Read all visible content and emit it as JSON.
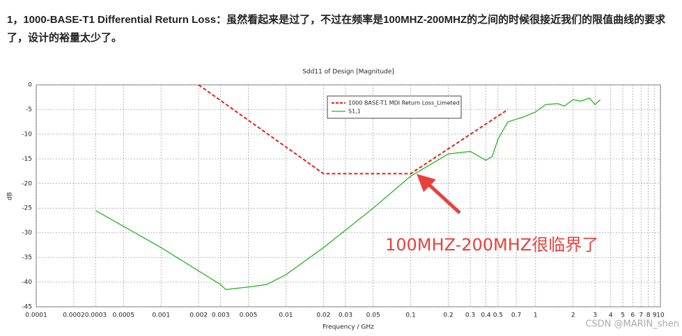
{
  "paragraph": "1，1000-BASE-T1 Differential Return Loss：虽然看起来是过了，不过在频率是100MHZ-200MHZ的之间的时候很接近我们的限值曲线的要求了，设计的裕量太少了。",
  "chart_data": {
    "type": "line",
    "title": "Sdd11 of Design [Magnitude]",
    "x_label": "Frequency / GHz",
    "y_label": "dB",
    "xscale": "log",
    "grid": true,
    "legend": "top",
    "xlim": [
      0.0001,
      10
    ],
    "ylim": [
      -45,
      0
    ],
    "xticks": [
      0.0001,
      0.0002,
      0.0003,
      0.0005,
      0.001,
      0.002,
      0.003,
      0.005,
      0.01,
      0.02,
      0.03,
      0.05,
      0.1,
      0.2,
      0.3,
      0.4,
      0.5,
      0.7,
      1,
      2,
      3,
      4,
      5,
      6,
      7,
      8,
      9,
      10
    ],
    "yticks": [
      0,
      -5,
      -10,
      -15,
      -20,
      -25,
      -30,
      -35,
      -40,
      -45
    ],
    "series": [
      {
        "name": "1000 BASE-T1 MDI Return Loss_Limeted",
        "color": "#e0201c",
        "dashed": true,
        "x": [
          0.002,
          0.02,
          0.1,
          0.6
        ],
        "values": [
          0,
          -18,
          -18,
          -5
        ]
      },
      {
        "name": "S1,1",
        "color": "#22b422",
        "dashed": false,
        "x": [
          0.0003,
          0.001,
          0.003,
          0.0033,
          0.005,
          0.007,
          0.01,
          0.02,
          0.05,
          0.1,
          0.2,
          0.3,
          0.4,
          0.45,
          0.5,
          0.6,
          0.8,
          1,
          1.2,
          1.5,
          1.7,
          2,
          2.3,
          2.7,
          3,
          3.3
        ],
        "values": [
          -25.5,
          -33,
          -40.5,
          -41.5,
          -41,
          -40.5,
          -38.5,
          -33,
          -25,
          -18.5,
          -14,
          -13.5,
          -15.3,
          -14.5,
          -11,
          -7.5,
          -6.5,
          -5.5,
          -4,
          -3.8,
          -4.3,
          -3,
          -3.3,
          -2.7,
          -4,
          -3
        ]
      }
    ],
    "annotation": "100MHZ-200MHZ很临界了",
    "watermark": "CSDN @MARIN_shen"
  }
}
